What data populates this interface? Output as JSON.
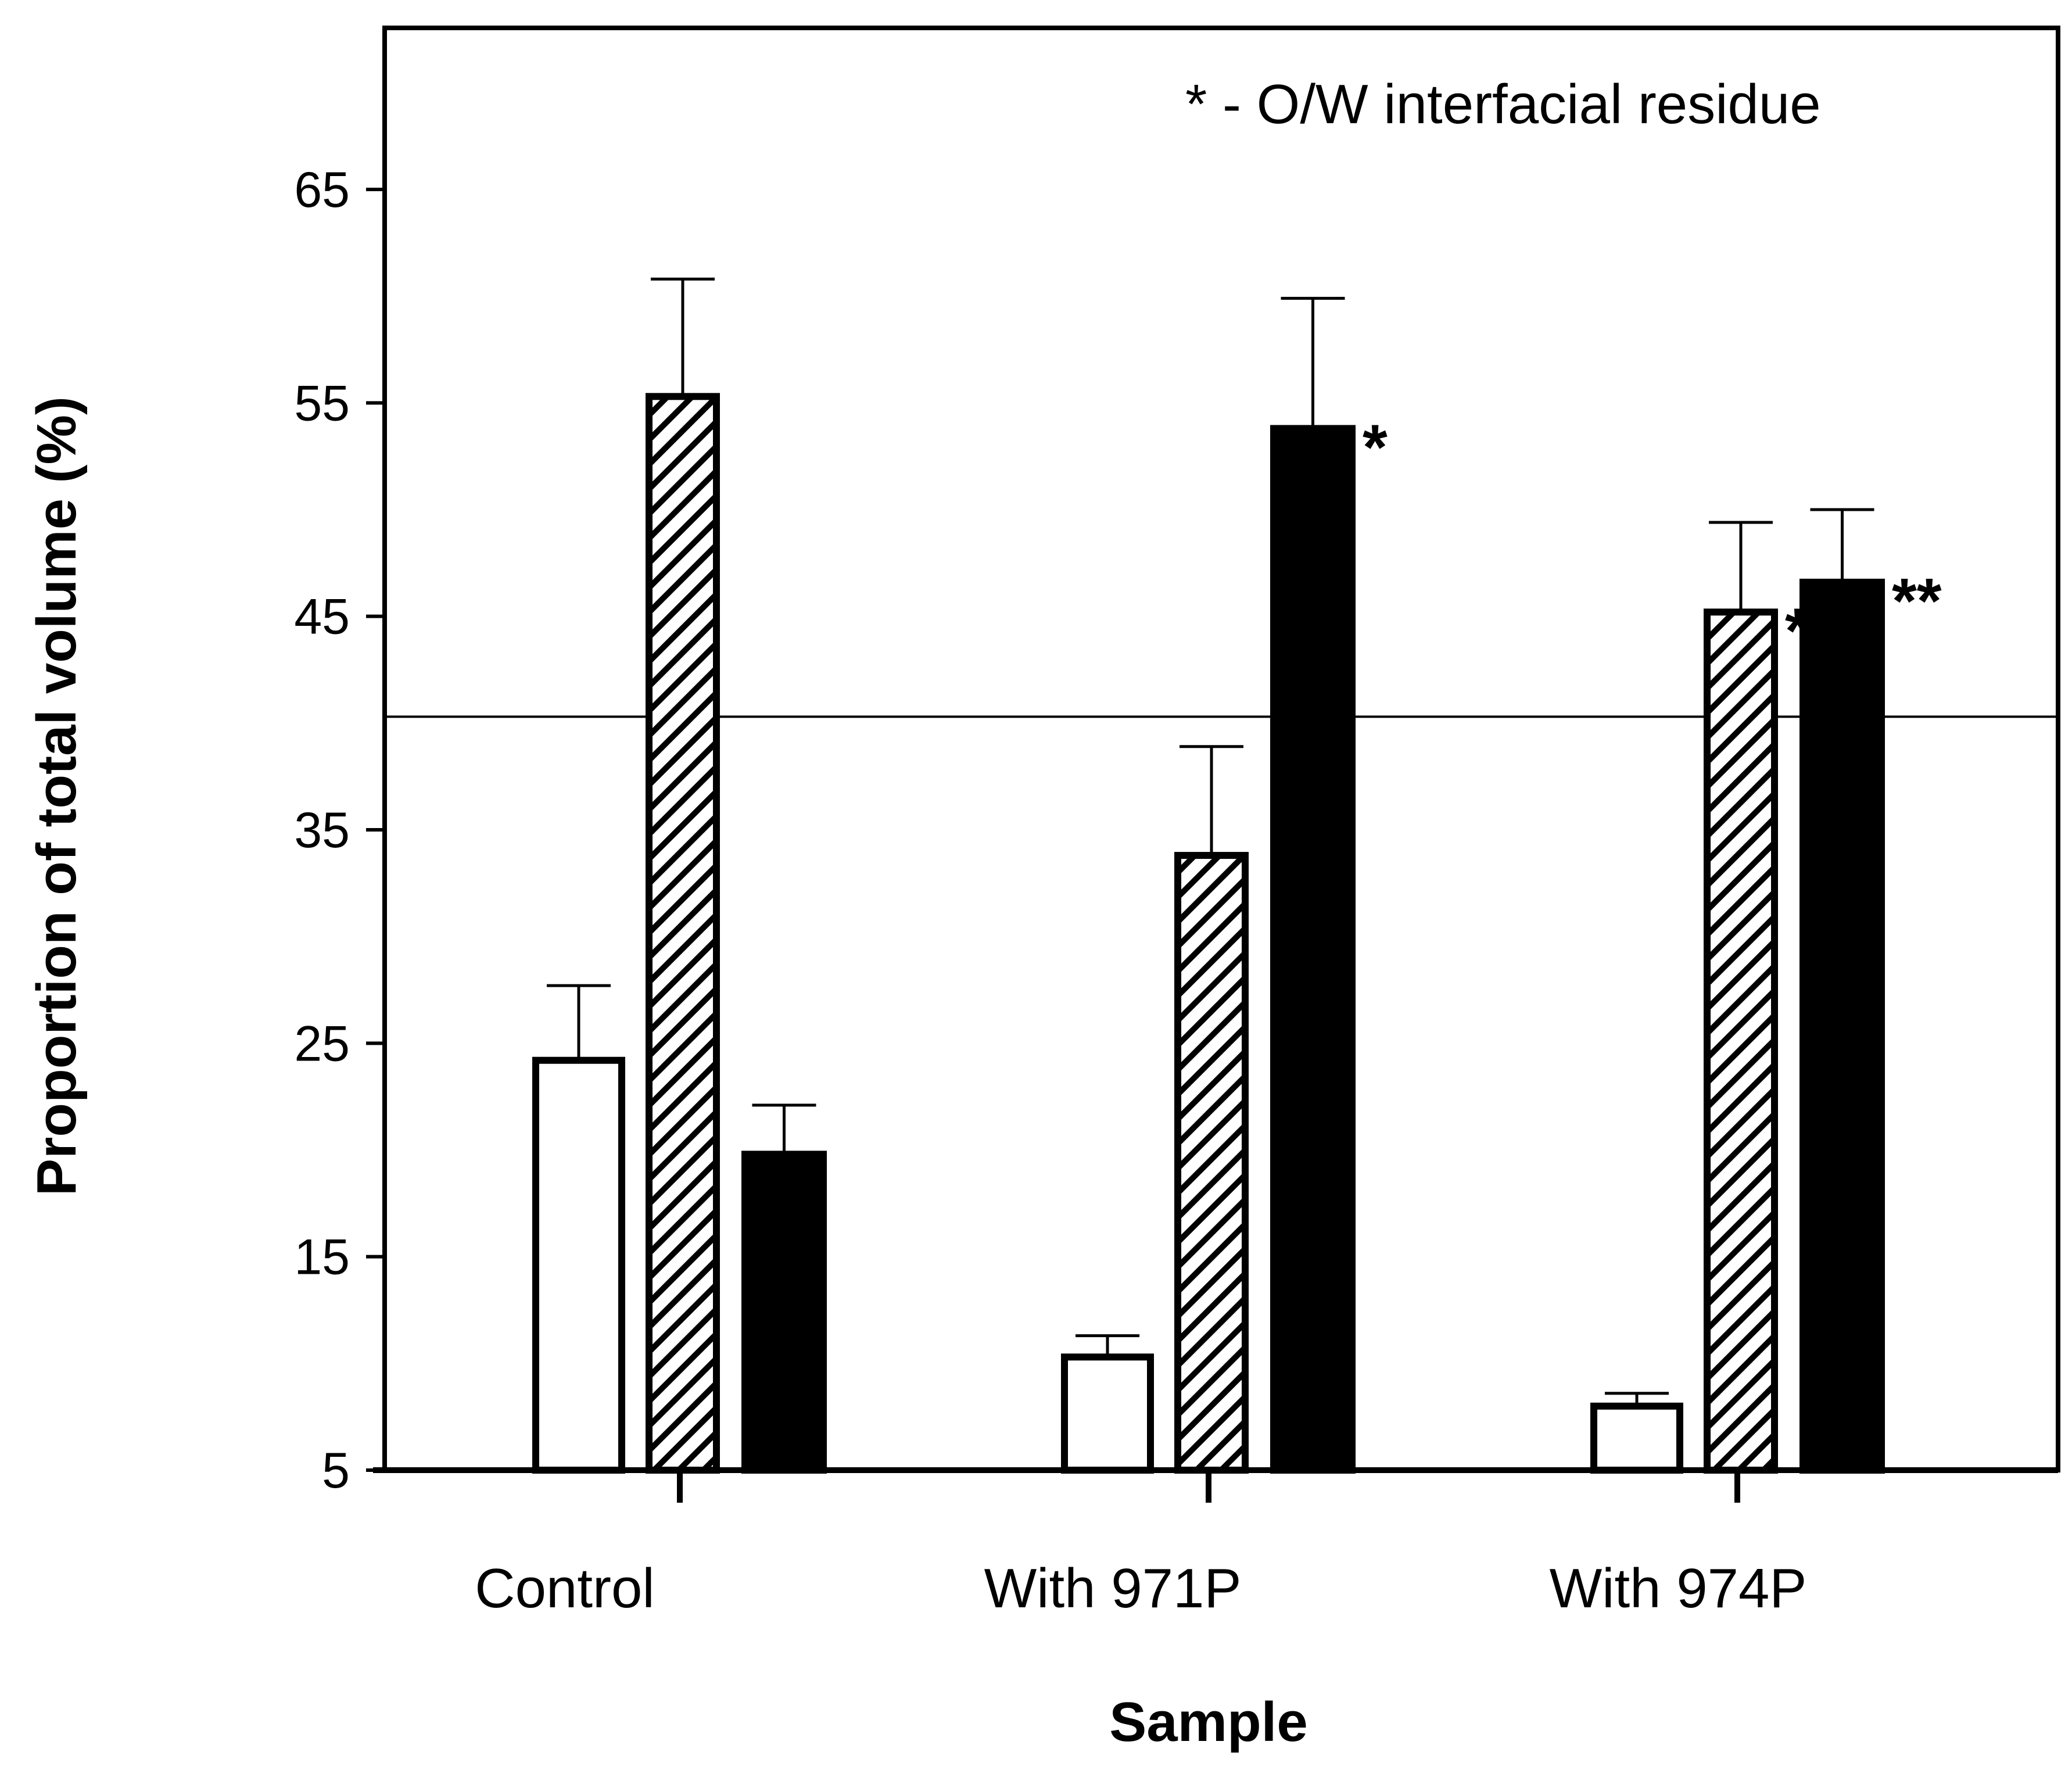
{
  "chart_data": {
    "type": "bar",
    "title": "",
    "xlabel": "Sample",
    "ylabel": "Proportion of total volume (%)",
    "ylim": [
      5,
      75
    ],
    "yticks": [
      5,
      15,
      25,
      35,
      45,
      55,
      65
    ],
    "grid": false,
    "reference_line": 40.3,
    "annotation": "* - O/W interfacial residue",
    "categories": [
      "Control",
      "With 971P",
      "With 974P"
    ],
    "series": [
      {
        "fill": "open",
        "values": [
          24.2,
          10.3,
          8.0
        ],
        "errors": [
          3.5,
          1.0,
          0.6
        ],
        "markers": [
          "",
          "",
          ""
        ]
      },
      {
        "fill": "hatched",
        "values": [
          55.3,
          33.8,
          45.2
        ],
        "errors": [
          5.5,
          5.1,
          4.2
        ],
        "markers": [
          "",
          "",
          "*"
        ]
      },
      {
        "fill": "solid",
        "values": [
          19.8,
          53.8,
          46.6
        ],
        "errors": [
          2.3,
          6.1,
          3.4
        ],
        "markers": [
          "",
          "*",
          "**"
        ]
      }
    ],
    "colors": {
      "bar_stroke": "#000000",
      "solid_fill": "#000000",
      "open_fill": "#ffffff"
    }
  }
}
